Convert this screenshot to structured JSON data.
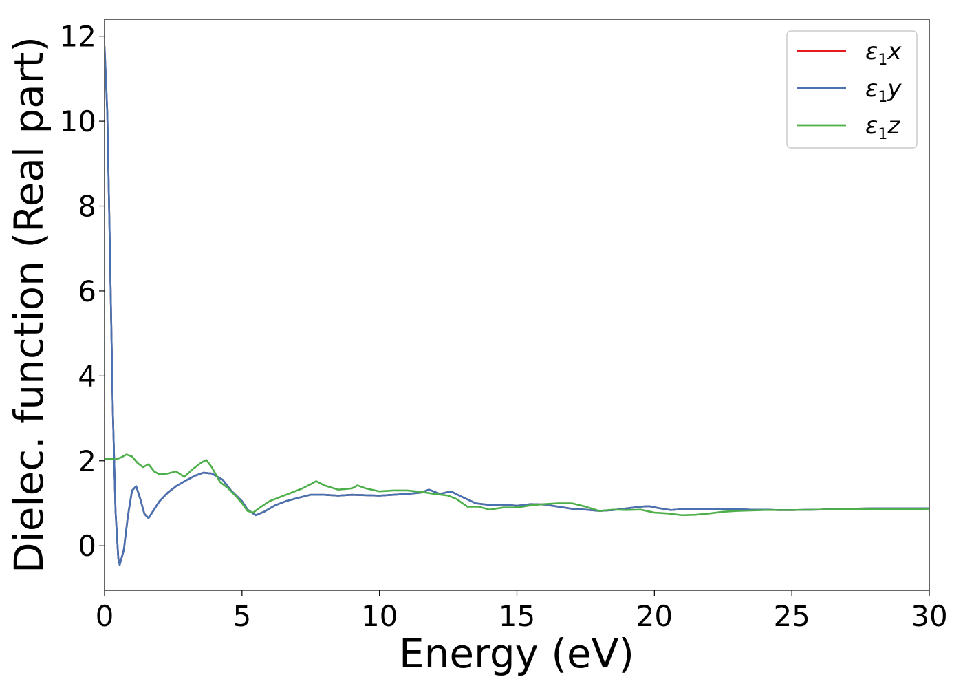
{
  "chart_data": {
    "type": "line",
    "xlabel": "Energy (eV)",
    "ylabel": "Dielec. function (Real part)",
    "xlim": [
      0,
      30
    ],
    "ylim": [
      -1.05,
      12.4
    ],
    "xticks": [
      "0",
      "5",
      "10",
      "15",
      "20",
      "25",
      "30"
    ],
    "yticks": [
      "0",
      "2",
      "4",
      "6",
      "8",
      "10",
      "12"
    ],
    "grid": false,
    "legend_position": "top-right",
    "series": [
      {
        "name": "ε₁x",
        "legend_base": "ε",
        "legend_sub": "1",
        "legend_var": "x",
        "color": "#e41a1c",
        "x": [
          0,
          0.1,
          0.2,
          0.3,
          0.4,
          0.5,
          0.55,
          0.7,
          0.85,
          1.0,
          1.15,
          1.3,
          1.45,
          1.6,
          1.8,
          2.0,
          2.3,
          2.6,
          3.0,
          3.3,
          3.6,
          3.9,
          4.3,
          4.6,
          5.0,
          5.2,
          5.5,
          5.8,
          6.2,
          6.6,
          7.0,
          7.5,
          8.0,
          8.5,
          9.0,
          9.5,
          10.0,
          10.5,
          11.0,
          11.5,
          11.8,
          12.2,
          12.6,
          13.0,
          13.5,
          14.0,
          14.5,
          15.0,
          15.5,
          16.0,
          16.5,
          17.0,
          17.5,
          18.0,
          18.5,
          19.0,
          19.5,
          19.8,
          20.2,
          20.6,
          21.0,
          21.5,
          22.0,
          22.5,
          23.0,
          23.5,
          24.0,
          24.5,
          25.0,
          26.0,
          27.0,
          28.0,
          29.0,
          30.0
        ],
        "y": [
          11.75,
          10.2,
          6.8,
          3.2,
          0.8,
          -0.3,
          -0.45,
          -0.1,
          0.7,
          1.3,
          1.4,
          1.1,
          0.75,
          0.65,
          0.85,
          1.05,
          1.25,
          1.4,
          1.55,
          1.65,
          1.72,
          1.7,
          1.55,
          1.3,
          1.05,
          0.85,
          0.72,
          0.8,
          0.95,
          1.05,
          1.12,
          1.2,
          1.2,
          1.18,
          1.2,
          1.19,
          1.18,
          1.2,
          1.22,
          1.25,
          1.32,
          1.22,
          1.28,
          1.15,
          1.0,
          0.96,
          0.97,
          0.94,
          0.98,
          0.97,
          0.92,
          0.87,
          0.85,
          0.82,
          0.84,
          0.88,
          0.92,
          0.93,
          0.88,
          0.84,
          0.86,
          0.86,
          0.87,
          0.86,
          0.86,
          0.85,
          0.85,
          0.84,
          0.84,
          0.85,
          0.87,
          0.88,
          0.88,
          0.88
        ]
      },
      {
        "name": "ε₁y",
        "legend_base": "ε",
        "legend_sub": "1",
        "legend_var": "y",
        "color": "#4a72b0",
        "x": [
          0,
          0.1,
          0.2,
          0.3,
          0.4,
          0.5,
          0.55,
          0.7,
          0.85,
          1.0,
          1.15,
          1.3,
          1.45,
          1.6,
          1.8,
          2.0,
          2.3,
          2.6,
          3.0,
          3.3,
          3.6,
          3.9,
          4.3,
          4.6,
          5.0,
          5.2,
          5.5,
          5.8,
          6.2,
          6.6,
          7.0,
          7.5,
          8.0,
          8.5,
          9.0,
          9.5,
          10.0,
          10.5,
          11.0,
          11.5,
          11.8,
          12.2,
          12.6,
          13.0,
          13.5,
          14.0,
          14.5,
          15.0,
          15.5,
          16.0,
          16.5,
          17.0,
          17.5,
          18.0,
          18.5,
          19.0,
          19.5,
          19.8,
          20.2,
          20.6,
          21.0,
          21.5,
          22.0,
          22.5,
          23.0,
          23.5,
          24.0,
          24.5,
          25.0,
          26.0,
          27.0,
          28.0,
          29.0,
          30.0
        ],
        "y": [
          11.75,
          10.2,
          6.8,
          3.2,
          0.8,
          -0.3,
          -0.45,
          -0.1,
          0.7,
          1.3,
          1.4,
          1.1,
          0.75,
          0.65,
          0.85,
          1.05,
          1.25,
          1.4,
          1.55,
          1.65,
          1.72,
          1.7,
          1.55,
          1.3,
          1.05,
          0.85,
          0.72,
          0.8,
          0.95,
          1.05,
          1.12,
          1.2,
          1.2,
          1.18,
          1.2,
          1.19,
          1.18,
          1.2,
          1.22,
          1.25,
          1.32,
          1.22,
          1.28,
          1.15,
          1.0,
          0.96,
          0.97,
          0.94,
          0.98,
          0.97,
          0.92,
          0.87,
          0.85,
          0.82,
          0.84,
          0.88,
          0.92,
          0.93,
          0.88,
          0.84,
          0.86,
          0.86,
          0.87,
          0.86,
          0.86,
          0.85,
          0.85,
          0.84,
          0.84,
          0.85,
          0.87,
          0.88,
          0.88,
          0.88
        ]
      },
      {
        "name": "ε₁z",
        "legend_base": "ε",
        "legend_sub": "1",
        "legend_var": "z",
        "color": "#4daf4a",
        "x": [
          0,
          0.2,
          0.4,
          0.6,
          0.8,
          1.0,
          1.2,
          1.4,
          1.6,
          1.8,
          2.0,
          2.3,
          2.6,
          2.9,
          3.2,
          3.5,
          3.7,
          3.9,
          4.2,
          4.5,
          4.8,
          5.0,
          5.2,
          5.4,
          5.7,
          6.0,
          6.4,
          6.8,
          7.2,
          7.5,
          7.7,
          8.0,
          8.5,
          9.0,
          9.2,
          9.5,
          10.0,
          10.5,
          11.0,
          11.5,
          12.0,
          12.5,
          12.8,
          13.2,
          13.6,
          14.0,
          14.5,
          15.0,
          15.5,
          16.0,
          16.5,
          17.0,
          17.5,
          18.0,
          18.5,
          19.0,
          19.5,
          20.0,
          20.5,
          21.0,
          21.5,
          22.0,
          22.5,
          23.0,
          23.5,
          24.0,
          25.0,
          26.0,
          27.0,
          28.0,
          29.0,
          30.0
        ],
        "y": [
          2.05,
          2.05,
          2.03,
          2.08,
          2.15,
          2.1,
          1.95,
          1.85,
          1.92,
          1.75,
          1.68,
          1.7,
          1.75,
          1.62,
          1.8,
          1.95,
          2.02,
          1.85,
          1.5,
          1.35,
          1.15,
          1.0,
          0.82,
          0.78,
          0.92,
          1.05,
          1.15,
          1.25,
          1.35,
          1.45,
          1.52,
          1.42,
          1.32,
          1.35,
          1.42,
          1.35,
          1.28,
          1.3,
          1.3,
          1.27,
          1.22,
          1.18,
          1.1,
          0.92,
          0.92,
          0.85,
          0.9,
          0.9,
          0.95,
          0.98,
          1.0,
          1.0,
          0.92,
          0.82,
          0.85,
          0.84,
          0.85,
          0.78,
          0.76,
          0.72,
          0.73,
          0.76,
          0.8,
          0.82,
          0.83,
          0.84,
          0.84,
          0.85,
          0.86,
          0.86,
          0.86,
          0.87
        ]
      }
    ]
  }
}
